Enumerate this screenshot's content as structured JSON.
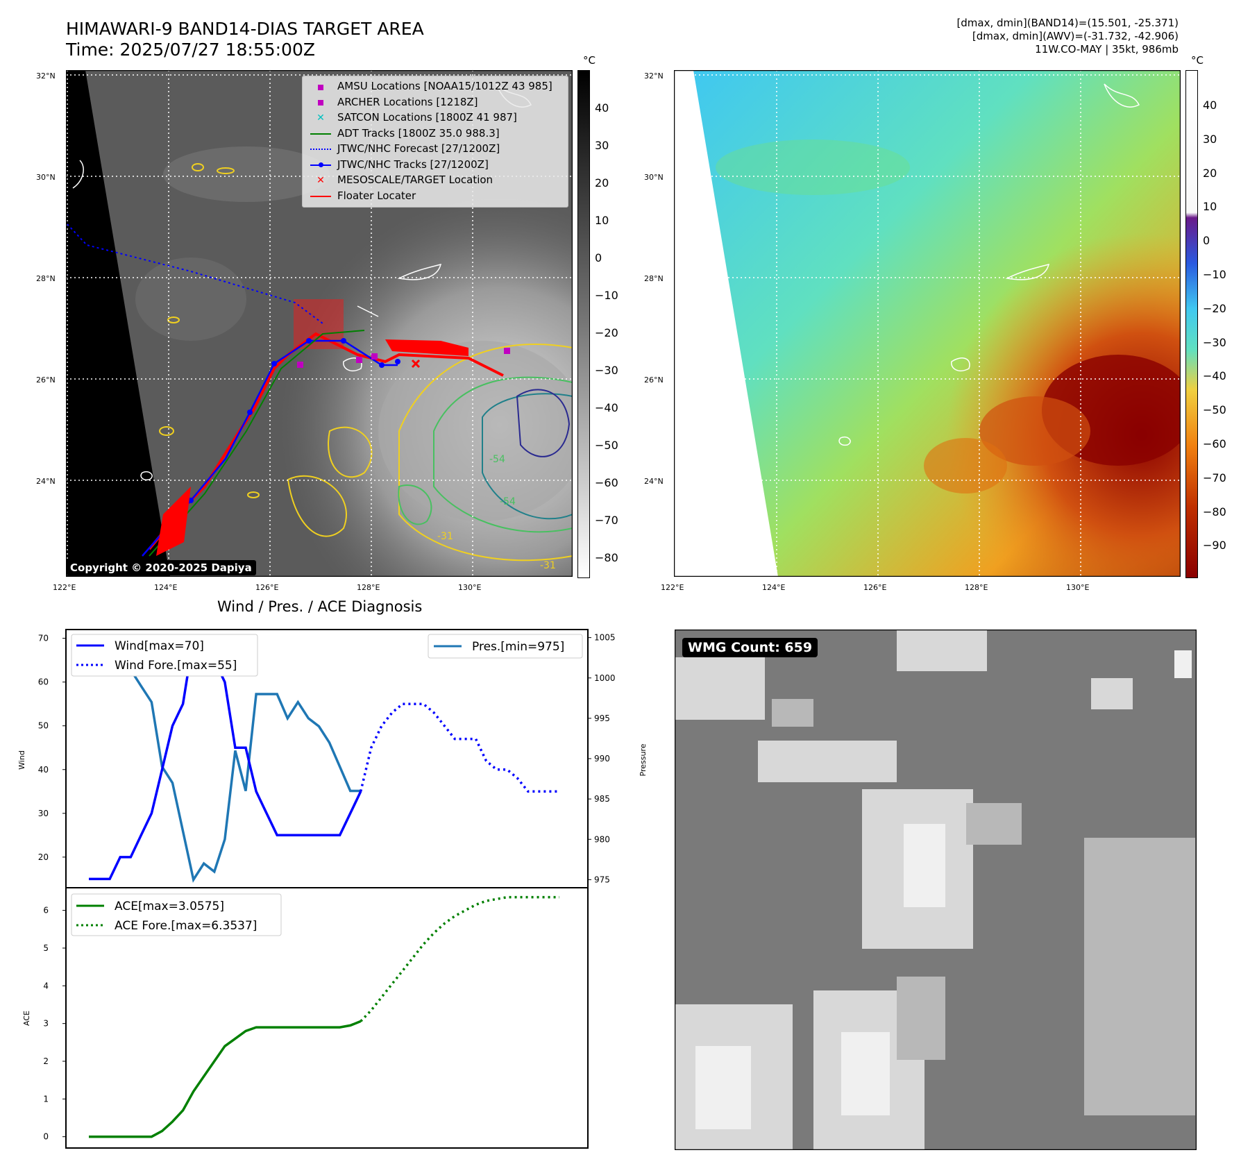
{
  "header": {
    "title_line1": "HIMAWARI-9 BAND14-DIAS TARGET AREA",
    "title_line2": "Time: 2025/07/27 18:55:00Z",
    "info_line1": "[dmax, dmin](BAND14)=(15.501, -25.371)",
    "info_line2": "[dmax, dmin](AWV)=(-31.732, -42.906)",
    "info_line3": "11W.CO-MAY | 35kt, 986mb"
  },
  "map_axes": {
    "lat_labels": [
      "32°N",
      "30°N",
      "28°N",
      "26°N",
      "24°N"
    ],
    "lon_labels": [
      "122°E",
      "124°E",
      "126°E",
      "128°E",
      "130°E"
    ]
  },
  "map1": {
    "colorbar_unit": "°C",
    "colorbar_ticks": [
      "40",
      "30",
      "20",
      "10",
      "0",
      "−10",
      "−20",
      "−30",
      "−40",
      "−50",
      "−60",
      "−70",
      "−80"
    ],
    "legend": [
      {
        "label": "AMSU Locations [NOAA15/1012Z 43 985]",
        "marker": "square",
        "color": "#c000c0"
      },
      {
        "label": "ARCHER Locations [1218Z]",
        "marker": "square",
        "color": "#c000c0"
      },
      {
        "label": "SATCON Locations [1800Z 41 987]",
        "marker": "x",
        "color": "#00c0c0"
      },
      {
        "label": "ADT Tracks [1800Z 35.0 988.3]",
        "marker": "line",
        "color": "#008000"
      },
      {
        "label": "JTWC/NHC Forecast [27/1200Z]",
        "marker": "dotted",
        "color": "#0000ff"
      },
      {
        "label": "JTWC/NHC Tracks [27/1200Z]",
        "marker": "linedot",
        "color": "#0000ff"
      },
      {
        "label": "MESOSCALE/TARGET Location",
        "marker": "x",
        "color": "#ff0000"
      },
      {
        "label": "Floater Locater",
        "marker": "line",
        "color": "#ff0000"
      }
    ],
    "contour_labels": [
      "-31",
      "-31",
      "-54",
      "-54"
    ],
    "copyright": "Copyright © 2020-2025 Dapiya"
  },
  "map2": {
    "colorbar_unit": "°C",
    "colorbar_ticks": [
      "40",
      "30",
      "20",
      "10",
      "0",
      "−10",
      "−20",
      "−30",
      "−40",
      "−50",
      "−60",
      "−70",
      "−80",
      "−90"
    ]
  },
  "diag": {
    "title": "Wind / Pres. / ACE Diagnosis",
    "wind_ylabel": "Wind",
    "pres_ylabel": "Pressure",
    "ace_ylabel": "ACE",
    "wind_ticks": [
      "70",
      "60",
      "50",
      "40",
      "30",
      "20"
    ],
    "pres_ticks": [
      "1005",
      "1000",
      "995",
      "990",
      "985",
      "980",
      "975"
    ],
    "ace_ticks": [
      "6",
      "5",
      "4",
      "3",
      "2",
      "1",
      "0"
    ],
    "legend_wind": "Wind[max=70]",
    "legend_wind_fore": "Wind Fore.[max=55]",
    "legend_pres": "Pres.[min=975]",
    "legend_ace": "ACE[max=3.0575]",
    "legend_ace_fore": "ACE Fore.[max=6.3537]"
  },
  "wmg": {
    "label": "WMG Count: 659"
  },
  "chart_data": [
    {
      "type": "line",
      "x": [
        0,
        1,
        2,
        3,
        4,
        5,
        6,
        7,
        8,
        9,
        10,
        11,
        12,
        13,
        14,
        15,
        16,
        17,
        18,
        19,
        20,
        21,
        22,
        23,
        24,
        25,
        26,
        27,
        28,
        29,
        30,
        31,
        32,
        33,
        34,
        35,
        36,
        37,
        38,
        39,
        40,
        41,
        42,
        43,
        44,
        45
      ],
      "series": [
        {
          "name": "Wind[max=70]",
          "axis": "wind",
          "color": "#0000ff",
          "style": "solid",
          "x": [
            0,
            1,
            2,
            3,
            4,
            5,
            6,
            7,
            8,
            9,
            10,
            11,
            12,
            13,
            14,
            15,
            16,
            17,
            18,
            19,
            20,
            21,
            22,
            23,
            24,
            25,
            26
          ],
          "values": [
            15,
            15,
            15,
            20,
            20,
            25,
            30,
            40,
            50,
            55,
            70,
            65,
            65,
            60,
            45,
            45,
            35,
            30,
            25,
            25,
            25,
            25,
            25,
            25,
            25,
            30,
            35
          ]
        },
        {
          "name": "Wind Fore.[max=55]",
          "axis": "wind",
          "color": "#0000ff",
          "style": "dotted",
          "x": [
            26,
            27,
            28,
            29,
            30,
            31,
            32,
            33,
            34,
            35,
            36,
            37,
            38,
            39,
            40,
            41,
            42,
            43,
            44,
            45
          ],
          "values": [
            35,
            45,
            50,
            53,
            55,
            55,
            55,
            53,
            50,
            47,
            47,
            47,
            42,
            40,
            40,
            38,
            35,
            35,
            35,
            35
          ]
        },
        {
          "name": "Pres.[min=975]",
          "axis": "pres",
          "color": "#1f77b4",
          "style": "solid",
          "x": [
            0,
            1,
            2,
            3,
            4,
            5,
            6,
            7,
            8,
            9,
            10,
            11,
            12,
            13,
            14,
            15,
            16,
            17,
            18,
            19,
            20,
            21,
            22,
            23,
            24,
            25,
            26
          ],
          "values": [
            1005,
            1005,
            1005,
            1003,
            1001,
            999,
            997,
            989,
            987,
            981,
            975,
            977,
            976,
            980,
            991,
            986,
            998,
            998,
            998,
            995,
            997,
            995,
            994,
            992,
            989,
            986,
            986
          ]
        }
      ],
      "wind_ylim": [
        13,
        72
      ],
      "pres_ylim": [
        974,
        1006
      ]
    },
    {
      "type": "line",
      "series": [
        {
          "name": "ACE[max=3.0575]",
          "color": "#008000",
          "style": "solid",
          "x": [
            0,
            1,
            2,
            3,
            4,
            5,
            6,
            7,
            8,
            9,
            10,
            11,
            12,
            13,
            14,
            15,
            16,
            17,
            18,
            19,
            20,
            21,
            22,
            23,
            24,
            25,
            26
          ],
          "values": [
            0,
            0,
            0,
            0,
            0,
            0,
            0,
            0.15,
            0.4,
            0.7,
            1.2,
            1.6,
            2.0,
            2.4,
            2.6,
            2.8,
            2.9,
            2.9,
            2.9,
            2.9,
            2.9,
            2.9,
            2.9,
            2.9,
            2.9,
            2.95,
            3.06
          ]
        },
        {
          "name": "ACE Fore.[max=6.3537]",
          "color": "#008000",
          "style": "dotted",
          "x": [
            26,
            27,
            28,
            29,
            30,
            31,
            32,
            33,
            34,
            35,
            36,
            37,
            38,
            39,
            40,
            41,
            42,
            43,
            44,
            45
          ],
          "values": [
            3.06,
            3.35,
            3.7,
            4.05,
            4.4,
            4.75,
            5.1,
            5.4,
            5.65,
            5.85,
            6.0,
            6.15,
            6.25,
            6.3,
            6.35,
            6.35,
            6.35,
            6.35,
            6.35,
            6.35
          ]
        }
      ],
      "ylim": [
        -0.3,
        6.6
      ]
    }
  ]
}
